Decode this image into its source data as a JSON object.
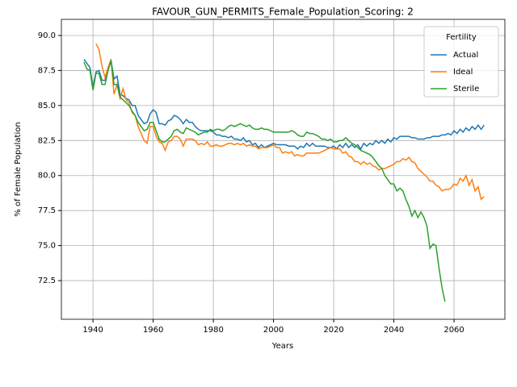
{
  "chart_data": {
    "type": "line",
    "title": "FAVOUR_GUN_PERMITS_Female_Population_Scoring: 2",
    "x_label": "Years",
    "y_label": "% of Female Population",
    "legend_title": "Fertility",
    "legend": "upper right",
    "grid": true,
    "xlim": [
      1929.5,
      2076.9
    ],
    "ylim": [
      69.74,
      91.15
    ],
    "xticks": [
      1940,
      1960,
      1980,
      2000,
      2020,
      2040,
      2060
    ],
    "yticks": [
      72.5,
      {
        "value": 75,
        "label": "75.0"
      },
      77.5,
      {
        "value": 80,
        "label": "80.0"
      },
      82.5,
      {
        "value": 85,
        "label": "85.0"
      },
      87.5,
      {
        "value": 90,
        "label": "90.0"
      }
    ],
    "x": [
      1937,
      1938,
      1939,
      1940,
      1941,
      1942,
      1943,
      1944,
      1945,
      1946,
      1947,
      1948,
      1949,
      1950,
      1951,
      1952,
      1953,
      1954,
      1955,
      1956,
      1957,
      1958,
      1959,
      1960,
      1961,
      1962,
      1963,
      1964,
      1965,
      1966,
      1967,
      1968,
      1969,
      1970,
      1971,
      1972,
      1973,
      1974,
      1975,
      1976,
      1977,
      1978,
      1979,
      1980,
      1981,
      1982,
      1983,
      1984,
      1985,
      1986,
      1987,
      1988,
      1989,
      1990,
      1991,
      1992,
      1993,
      1994,
      1995,
      1996,
      1997,
      1998,
      1999,
      2000,
      2001,
      2002,
      2003,
      2004,
      2005,
      2006,
      2007,
      2008,
      2009,
      2010,
      2011,
      2012,
      2013,
      2014,
      2015,
      2016,
      2017,
      2018,
      2019,
      2020,
      2021,
      2022,
      2023,
      2024,
      2025,
      2026,
      2027,
      2028,
      2029,
      2030,
      2031,
      2032,
      2033,
      2034,
      2035,
      2036,
      2037,
      2038,
      2039,
      2040,
      2041,
      2042,
      2043,
      2044,
      2045,
      2046,
      2047,
      2048,
      2049,
      2050,
      2051,
      2052,
      2053,
      2054,
      2055,
      2056,
      2057,
      2058,
      2059,
      2060,
      2061,
      2062,
      2063,
      2064,
      2065,
      2066,
      2067,
      2068,
      2069,
      2070
    ],
    "series": [
      {
        "name": "Actual",
        "color": "#1f77b4",
        "values": [
          88.3,
          88.0,
          87.7,
          86.3,
          87.4,
          87.5,
          86.8,
          86.8,
          87.6,
          88.2,
          86.9,
          87.1,
          85.8,
          85.7,
          85.5,
          85.4,
          85.0,
          85.0,
          84.3,
          84.0,
          83.7,
          83.8,
          84.4,
          84.7,
          84.5,
          83.7,
          83.7,
          83.6,
          83.9,
          84.0,
          84.3,
          84.2,
          84.0,
          83.7,
          84.0,
          83.8,
          83.8,
          83.5,
          83.3,
          83.2,
          83.2,
          83.2,
          83.2,
          83.1,
          82.9,
          82.9,
          82.8,
          82.8,
          82.7,
          82.8,
          82.6,
          82.6,
          82.5,
          82.7,
          82.4,
          82.5,
          82.2,
          82.3,
          82.0,
          82.2,
          82.0,
          82.1,
          82.2,
          82.3,
          82.2,
          82.2,
          82.2,
          82.2,
          82.1,
          82.1,
          82.1,
          81.9,
          82.1,
          82.0,
          82.3,
          82.1,
          82.3,
          82.1,
          82.1,
          82.1,
          82.1,
          82.0,
          82.0,
          82.1,
          81.9,
          82.2,
          82.0,
          82.3,
          82.0,
          82.2,
          82.0,
          82.2,
          81.9,
          82.3,
          82.1,
          82.3,
          82.2,
          82.5,
          82.3,
          82.5,
          82.3,
          82.6,
          82.4,
          82.7,
          82.6,
          82.8,
          82.8,
          82.8,
          82.8,
          82.7,
          82.7,
          82.6,
          82.6,
          82.6,
          82.7,
          82.7,
          82.8,
          82.8,
          82.8,
          82.9,
          82.9,
          83.0,
          82.9,
          83.2,
          83.0,
          83.3,
          83.1,
          83.4,
          83.2,
          83.5,
          83.3,
          83.6,
          83.3,
          83.6
        ]
      },
      {
        "name": "Ideal",
        "color": "#ff7f0e",
        "values": [
          null,
          null,
          null,
          null,
          89.4,
          89.0,
          87.8,
          87.0,
          87.7,
          88.3,
          85.8,
          86.5,
          85.5,
          86.2,
          85.4,
          85.2,
          84.5,
          84.3,
          83.5,
          83.0,
          82.5,
          82.3,
          83.5,
          83.5,
          82.8,
          82.4,
          82.3,
          81.8,
          82.4,
          82.5,
          82.8,
          82.8,
          82.6,
          82.1,
          82.6,
          82.6,
          82.6,
          82.5,
          82.2,
          82.3,
          82.2,
          82.4,
          82.1,
          82.1,
          82.2,
          82.1,
          82.1,
          82.2,
          82.3,
          82.3,
          82.2,
          82.3,
          82.2,
          82.3,
          82.1,
          82.2,
          82.1,
          82.1,
          81.9,
          82.0,
          82.0,
          82.0,
          82.1,
          82.2,
          82.0,
          82.0,
          81.6,
          81.7,
          81.6,
          81.7,
          81.4,
          81.5,
          81.4,
          81.4,
          81.6,
          81.6,
          81.6,
          81.6,
          81.6,
          81.7,
          81.8,
          81.9,
          82.0,
          81.9,
          81.9,
          81.9,
          81.6,
          81.7,
          81.4,
          81.3,
          81.0,
          81.0,
          80.8,
          81.0,
          80.8,
          80.9,
          80.7,
          80.6,
          80.4,
          80.5,
          80.5,
          80.6,
          80.7,
          80.8,
          81.0,
          81.0,
          81.2,
          81.1,
          81.3,
          81.0,
          80.9,
          80.5,
          80.3,
          80.1,
          79.9,
          79.6,
          79.6,
          79.3,
          79.2,
          78.9,
          79.0,
          79.0,
          79.1,
          79.4,
          79.3,
          79.8,
          79.6,
          80.0,
          79.3,
          79.7,
          78.9,
          79.2,
          78.3,
          78.5
        ]
      },
      {
        "name": "Sterile",
        "color": "#2ca02c",
        "values": [
          88.1,
          87.6,
          87.5,
          86.1,
          87.3,
          87.3,
          86.5,
          86.5,
          87.5,
          88.2,
          86.5,
          86.5,
          85.6,
          85.4,
          85.2,
          85.0,
          84.6,
          84.3,
          83.8,
          83.5,
          83.2,
          83.3,
          83.8,
          83.8,
          83.2,
          82.6,
          82.4,
          82.4,
          82.6,
          82.8,
          83.2,
          83.3,
          83.1,
          83.0,
          83.4,
          83.3,
          83.2,
          83.1,
          82.9,
          83.0,
          83.1,
          83.1,
          83.3,
          83.2,
          83.3,
          83.3,
          83.2,
          83.3,
          83.5,
          83.6,
          83.5,
          83.6,
          83.7,
          83.6,
          83.5,
          83.6,
          83.4,
          83.3,
          83.3,
          83.4,
          83.3,
          83.3,
          83.2,
          83.1,
          83.1,
          83.1,
          83.1,
          83.1,
          83.1,
          83.2,
          83.1,
          82.9,
          82.8,
          82.8,
          83.1,
          83.0,
          83.0,
          82.9,
          82.8,
          82.6,
          82.6,
          82.5,
          82.6,
          82.4,
          82.4,
          82.5,
          82.5,
          82.7,
          82.5,
          82.3,
          82.2,
          82.0,
          81.8,
          81.7,
          81.6,
          81.5,
          81.3,
          81.0,
          80.7,
          80.5,
          80.0,
          79.7,
          79.4,
          79.4,
          78.9,
          79.1,
          78.9,
          78.3,
          77.8,
          77.1,
          77.5,
          77.0,
          77.4,
          77.0,
          76.4,
          74.8,
          75.1,
          75.0,
          73.4,
          72.0,
          71.0,
          null,
          null,
          null,
          null,
          null,
          null,
          null,
          null,
          null,
          null,
          null,
          null,
          null
        ]
      }
    ]
  }
}
